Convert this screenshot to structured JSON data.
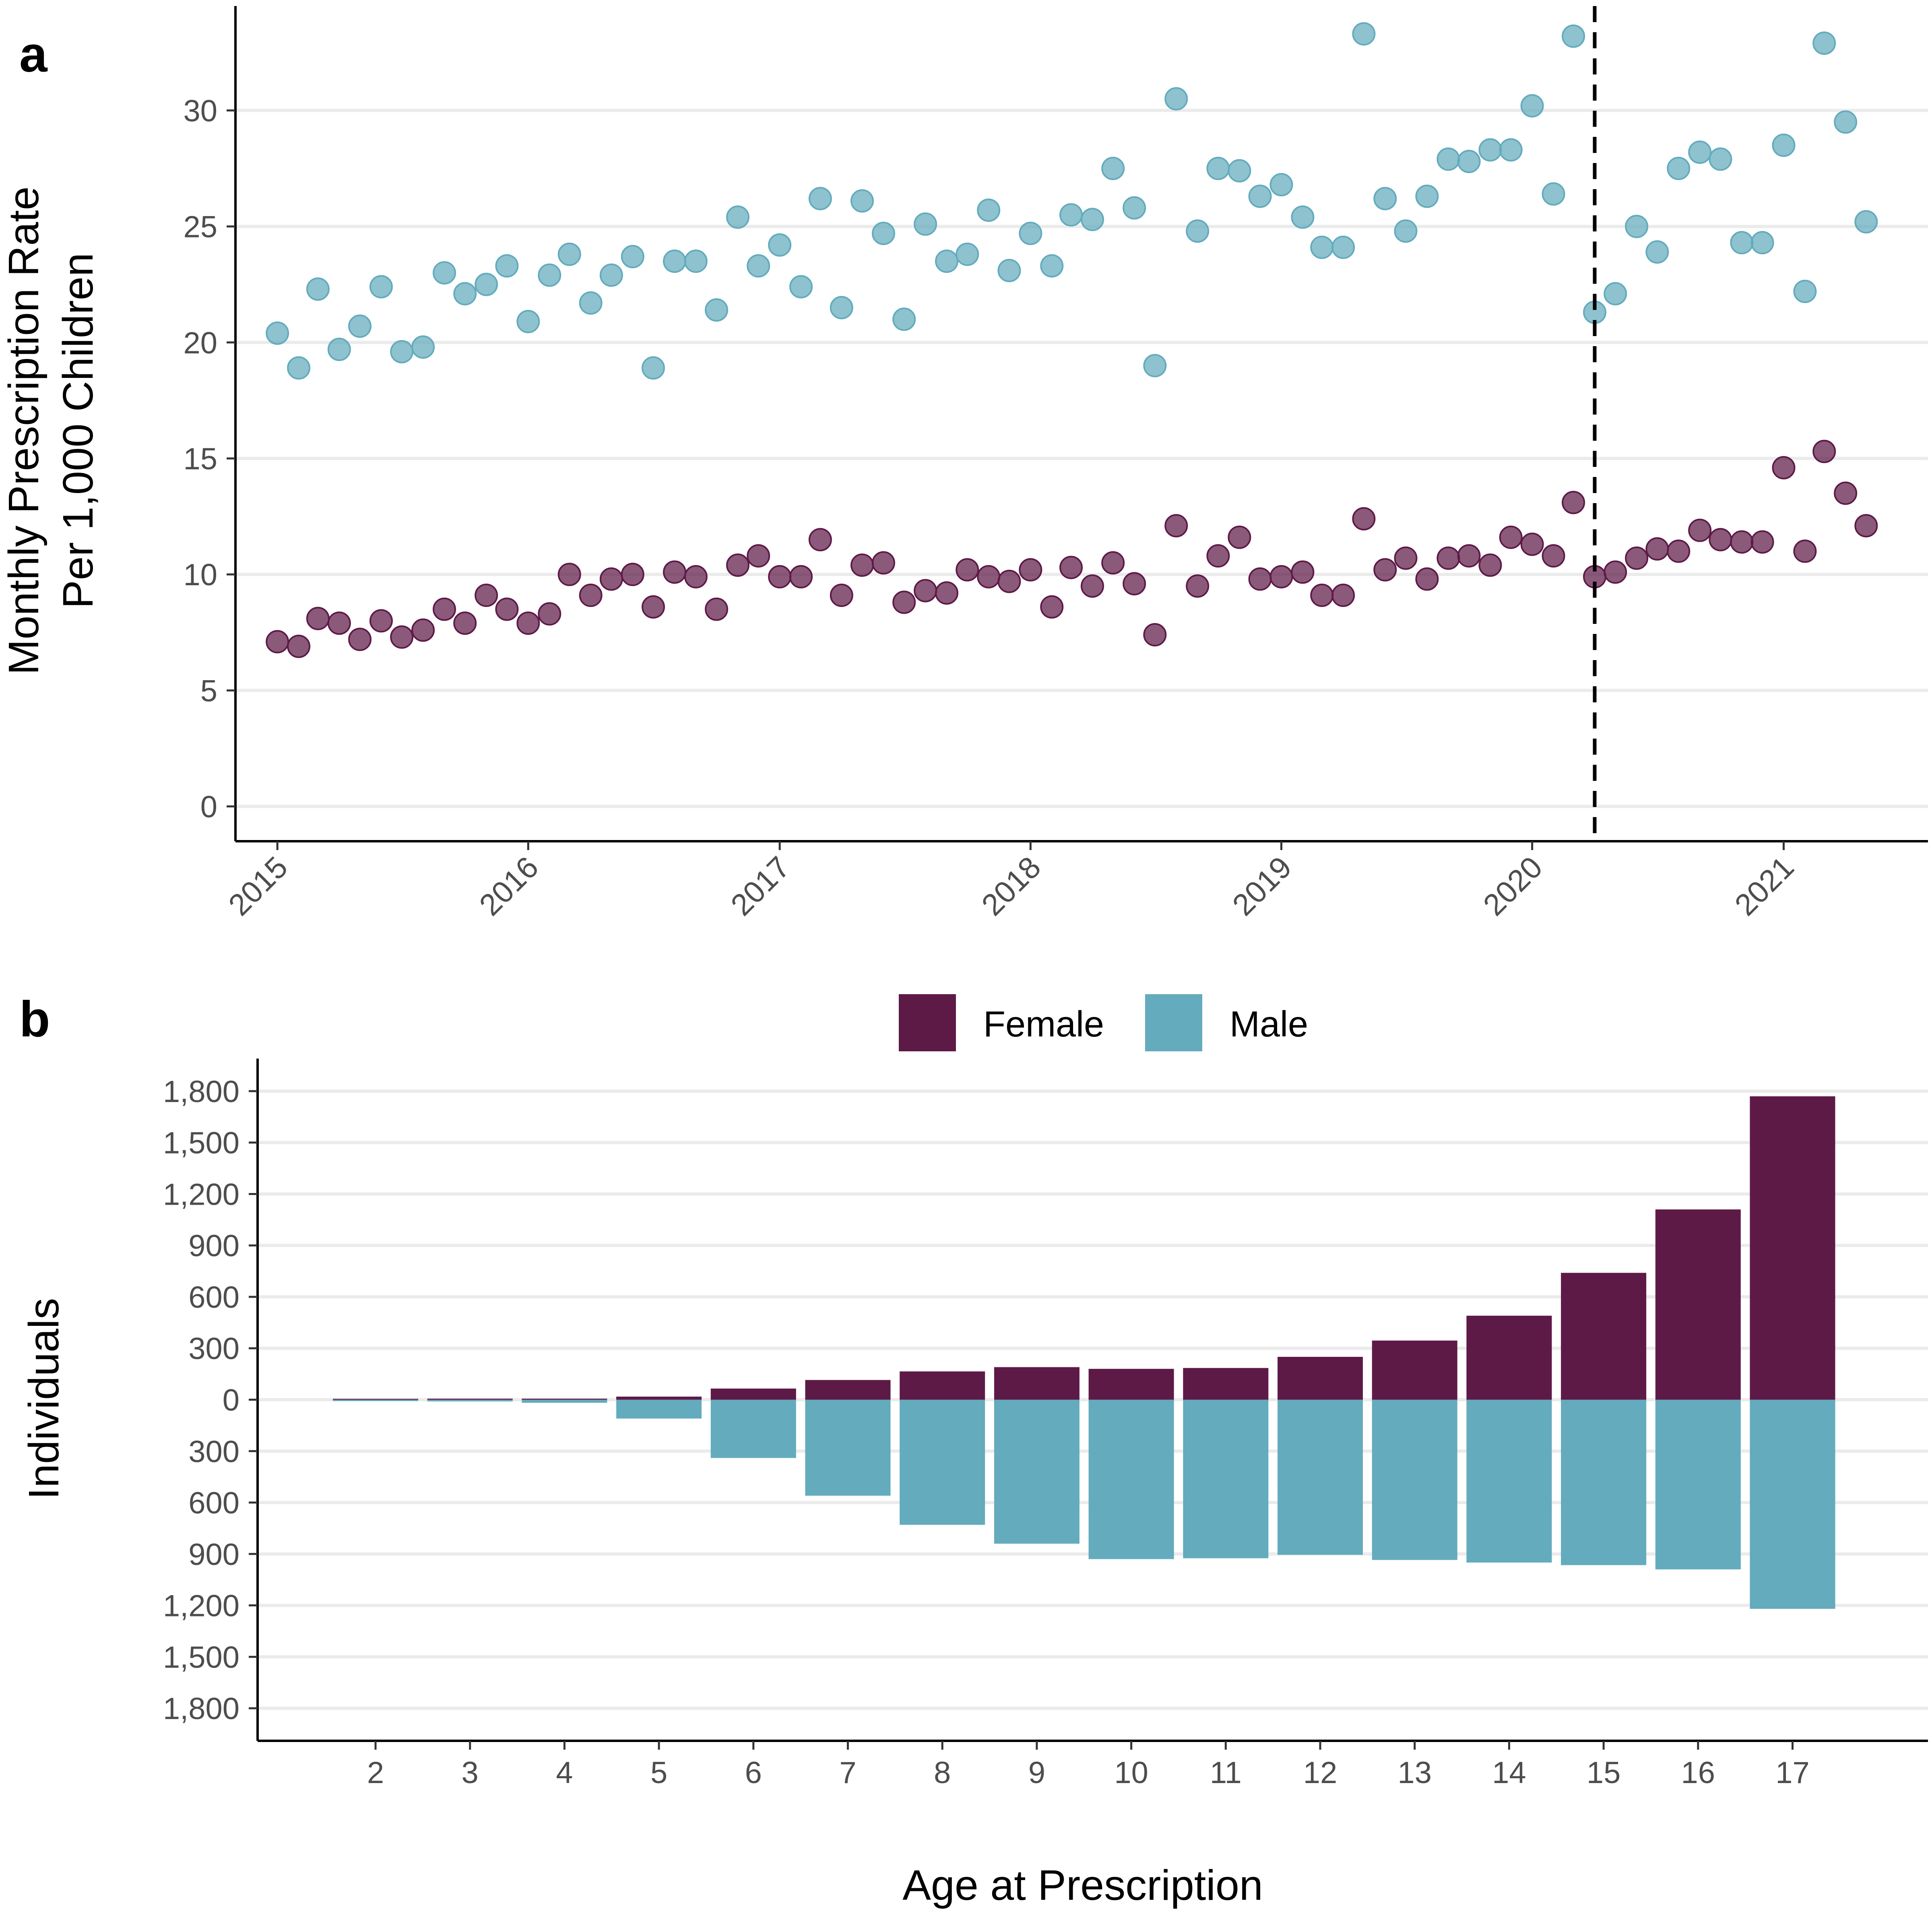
{
  "colors": {
    "female": "#5e1a47",
    "male": "#63abbd",
    "grid": "#ebebeb"
  },
  "chart_data": [
    {
      "type": "scatter",
      "panel_label": "a",
      "title": "",
      "xlabel": "",
      "ylabel_lines": [
        "Monthly Prescription Rate",
        "Per 1,000 Children"
      ],
      "xlim": [
        "2014-11-01",
        "2021-07-30"
      ],
      "ylim": [
        -1.5,
        34.5
      ],
      "x_ticks": [
        "2015",
        "2016",
        "2017",
        "2018",
        "2019",
        "2020",
        "2021"
      ],
      "y_ticks": [
        0,
        5,
        10,
        15,
        20,
        25,
        30
      ],
      "grid": true,
      "vline_date": "2020-04-01",
      "series": [
        {
          "name": "Male",
          "color": "#63abbd",
          "start": "2015-01",
          "values": [
            20.4,
            18.9,
            22.3,
            19.7,
            20.7,
            22.4,
            19.6,
            19.8,
            23.0,
            22.1,
            22.5,
            23.3,
            20.9,
            22.9,
            23.8,
            21.7,
            22.9,
            23.7,
            18.9,
            23.5,
            23.5,
            21.4,
            25.4,
            23.3,
            24.2,
            22.4,
            26.2,
            21.5,
            26.1,
            24.7,
            21.0,
            25.1,
            23.5,
            23.8,
            25.7,
            23.1,
            24.7,
            23.3,
            25.5,
            25.3,
            27.5,
            25.8,
            19.0,
            30.5,
            24.8,
            27.5,
            27.4,
            26.3,
            26.8,
            25.4,
            24.1,
            24.1,
            33.3,
            26.2,
            24.8,
            26.3,
            27.9,
            27.8,
            28.3,
            28.3,
            30.2,
            26.4,
            33.2,
            21.3,
            22.1,
            25.0,
            23.9,
            27.5,
            28.2,
            27.9,
            24.3,
            24.3,
            28.5,
            22.2,
            32.9,
            29.5,
            25.2
          ]
        },
        {
          "name": "Female",
          "color": "#5e1a47",
          "start": "2015-01",
          "values": [
            7.1,
            6.9,
            8.1,
            7.9,
            7.2,
            8.0,
            7.3,
            7.6,
            8.5,
            7.9,
            9.1,
            8.5,
            7.9,
            8.3,
            10.0,
            9.1,
            9.8,
            10.0,
            8.6,
            10.1,
            9.9,
            8.5,
            10.4,
            10.8,
            9.9,
            9.9,
            11.5,
            9.1,
            10.4,
            10.5,
            8.8,
            9.3,
            9.2,
            10.2,
            9.9,
            9.7,
            10.2,
            8.6,
            10.3,
            9.5,
            10.5,
            9.6,
            7.4,
            12.1,
            9.5,
            10.8,
            11.6,
            9.8,
            9.9,
            10.1,
            9.1,
            9.1,
            12.4,
            10.2,
            10.7,
            9.8,
            10.7,
            10.8,
            10.4,
            11.6,
            11.3,
            10.8,
            13.1,
            9.9,
            10.1,
            10.7,
            11.1,
            11.0,
            11.9,
            11.5,
            11.4,
            11.4,
            14.6,
            11.0,
            15.3,
            13.5,
            12.1
          ]
        }
      ]
    },
    {
      "type": "bar",
      "panel_label": "b",
      "title": "",
      "xlabel": "Age at Prescription",
      "ylabel": "Individuals",
      "categories": [
        "2",
        "3",
        "4",
        "5",
        "6",
        "7",
        "8",
        "9",
        "10",
        "11",
        "12",
        "13",
        "14",
        "15",
        "16",
        "17"
      ],
      "ylim": [
        -1990,
        1990
      ],
      "y_ticks": [
        1800,
        1500,
        1200,
        900,
        600,
        300,
        0,
        -300,
        -600,
        -900,
        -1200,
        -1500,
        -1800
      ],
      "y_tick_labels": [
        "1,800",
        "1,500",
        "1,200",
        "900",
        "600",
        "300",
        "0",
        "300",
        "600",
        "900",
        "1,200",
        "1,500",
        "1,800"
      ],
      "grid": true,
      "legend_position": "top",
      "series": [
        {
          "name": "Female",
          "color": "#5e1a47",
          "values": [
            5,
            6,
            6,
            18,
            65,
            115,
            165,
            190,
            180,
            185,
            250,
            345,
            490,
            740,
            1110,
            1770
          ]
        },
        {
          "name": "Male",
          "color": "#63abbd",
          "values": [
            -8,
            -10,
            -18,
            -110,
            -340,
            -560,
            -730,
            -840,
            -930,
            -925,
            -905,
            -935,
            -950,
            -965,
            -990,
            -1220
          ]
        }
      ]
    }
  ]
}
